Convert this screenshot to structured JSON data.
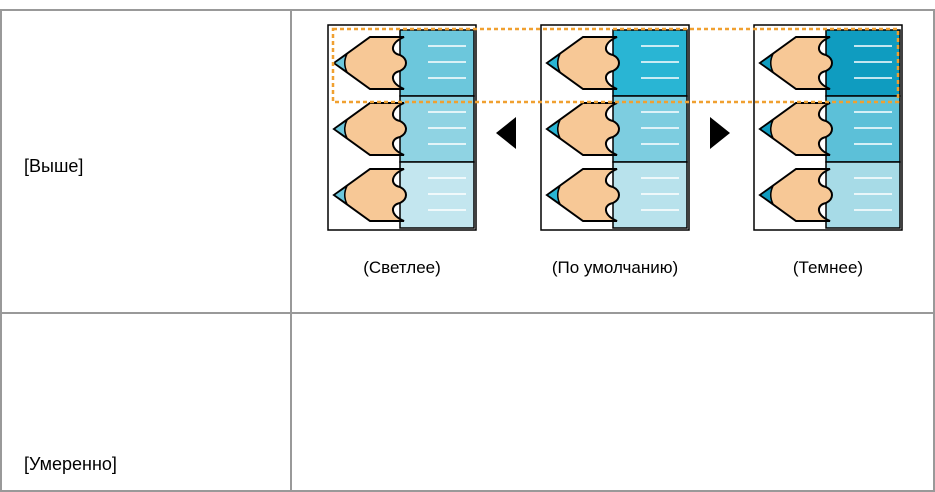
{
  "table": {
    "rows": [
      {
        "label": "[Выше]",
        "captions": [
          "(Светлее)",
          "(По умолчанию)",
          "(Темнее)"
        ]
      },
      {
        "label": "[Умеренно]"
      }
    ]
  }
}
